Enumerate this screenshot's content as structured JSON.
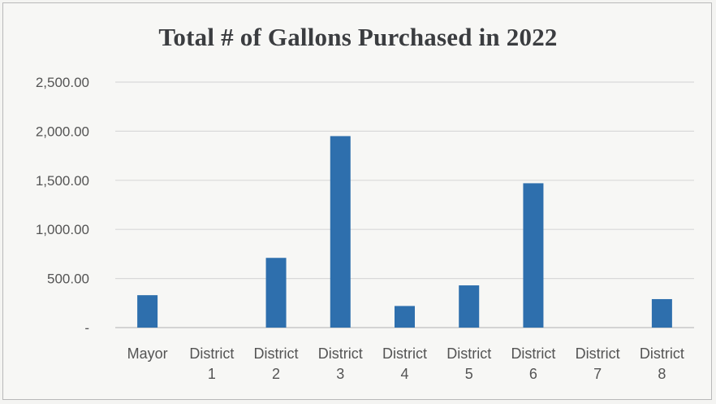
{
  "chart_data": {
    "type": "bar",
    "title": "Total # of Gallons Purchased in 2022",
    "categories": [
      [
        "Mayor"
      ],
      [
        "District",
        "1"
      ],
      [
        "District",
        "2"
      ],
      [
        "District",
        "3"
      ],
      [
        "District",
        "4"
      ],
      [
        "District",
        "5"
      ],
      [
        "District",
        "6"
      ],
      [
        "District",
        "7"
      ],
      [
        "District",
        "8"
      ]
    ],
    "values": [
      330,
      0,
      710,
      1950,
      220,
      430,
      1470,
      0,
      290
    ],
    "ylim": [
      0,
      2500
    ],
    "y_ticks": [
      {
        "value": 0,
        "label": "-"
      },
      {
        "value": 500,
        "label": "500.00"
      },
      {
        "value": 1000,
        "label": "1,000.00"
      },
      {
        "value": 1500,
        "label": "1,500.00"
      },
      {
        "value": 2000,
        "label": "2,000.00"
      },
      {
        "value": 2500,
        "label": "2,500.00"
      }
    ],
    "grid": true,
    "legend": "none",
    "bar_color": "#2e6fad",
    "grid_color": "#d9d9d9"
  }
}
